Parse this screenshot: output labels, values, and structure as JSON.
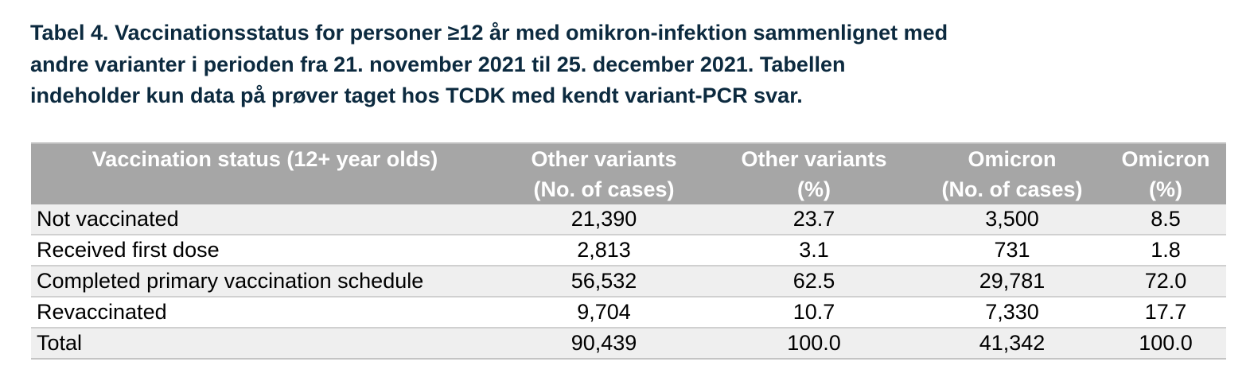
{
  "caption": {
    "line1": "Tabel 4. Vaccinationsstatus for personer ≥12 år med omikron-infektion sammenlignet med",
    "line2": "andre varianter i perioden fra 21. november 2021 til 25. december 2021. Tabellen",
    "line3": "indeholder kun data på prøver taget hos TCDK med kendt variant-PCR svar."
  },
  "table": {
    "headers": [
      {
        "line1": "Vaccination status (12+ year olds)",
        "line2": ""
      },
      {
        "line1": "Other variants",
        "line2": "(No. of cases)"
      },
      {
        "line1": "Other variants",
        "line2": "(%)"
      },
      {
        "line1": "Omicron",
        "line2": "(No. of cases)"
      },
      {
        "line1": "Omicron",
        "line2": "(%)"
      }
    ],
    "rows": [
      {
        "status": "Not vaccinated",
        "other_cases": "21,390",
        "other_pct": "23.7",
        "omicron_cases": "3,500",
        "omicron_pct": "8.5"
      },
      {
        "status": "Received first dose",
        "other_cases": "2,813",
        "other_pct": "3.1",
        "omicron_cases": "731",
        "omicron_pct": "1.8"
      },
      {
        "status": "Completed primary vaccination schedule",
        "other_cases": "56,532",
        "other_pct": "62.5",
        "omicron_cases": "29,781",
        "omicron_pct": "72.0"
      },
      {
        "status": "Revaccinated",
        "other_cases": "9,704",
        "other_pct": "10.7",
        "omicron_cases": "7,330",
        "omicron_pct": "17.7"
      },
      {
        "status": "Total",
        "other_cases": "90,439",
        "other_pct": "100.0",
        "omicron_cases": "41,342",
        "omicron_pct": "100.0"
      }
    ]
  },
  "colors": {
    "caption_text": "#0c2a3f",
    "header_bg": "#a6a6a6",
    "header_text": "#ffffff",
    "shaded_row_bg": "#efefef"
  }
}
